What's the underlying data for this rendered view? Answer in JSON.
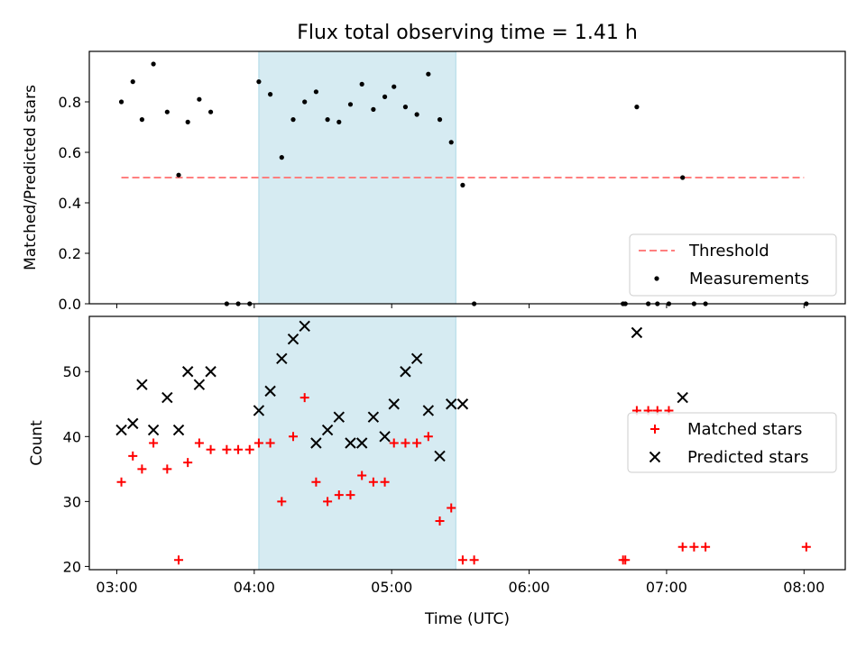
{
  "chart_data": {
    "type": "scatter",
    "title": "Flux total observing time = 1.41 h",
    "xlabel": "Time (UTC)",
    "xlim": [
      "02:48",
      "08:18"
    ],
    "xticks": [
      "03:00",
      "04:00",
      "05:00",
      "06:00",
      "07:00",
      "08:00"
    ],
    "shaded_region": {
      "start": "04:02",
      "end": "05:28",
      "color": "#add8e6"
    },
    "panels": [
      {
        "name": "ratio",
        "ylabel": "Matched/Predicted stars",
        "ylim": [
          0,
          1.0
        ],
        "yticks": [
          "0.0",
          "0.2",
          "0.4",
          "0.6",
          "0.8"
        ],
        "threshold": {
          "label": "Threshold",
          "y": 0.5,
          "x_start": "03:02",
          "x_end": "08:00",
          "color": "#ff7f7f"
        },
        "series": [
          {
            "name": "Measurements",
            "marker": "dot",
            "color": "#000000",
            "points": [
              [
                "03:02",
                0.8
              ],
              [
                "03:07",
                0.88
              ],
              [
                "03:11",
                0.73
              ],
              [
                "03:16",
                0.95
              ],
              [
                "03:22",
                0.76
              ],
              [
                "03:27",
                0.51
              ],
              [
                "03:31",
                0.72
              ],
              [
                "03:36",
                0.81
              ],
              [
                "03:41",
                0.76
              ],
              [
                "03:48",
                0.0
              ],
              [
                "03:53",
                0.0
              ],
              [
                "03:58",
                0.0
              ],
              [
                "04:02",
                0.88
              ],
              [
                "04:07",
                0.83
              ],
              [
                "04:12",
                0.58
              ],
              [
                "04:17",
                0.73
              ],
              [
                "04:22",
                0.8
              ],
              [
                "04:27",
                0.84
              ],
              [
                "04:32",
                0.73
              ],
              [
                "04:37",
                0.72
              ],
              [
                "04:42",
                0.79
              ],
              [
                "04:47",
                0.87
              ],
              [
                "04:52",
                0.77
              ],
              [
                "04:57",
                0.82
              ],
              [
                "05:01",
                0.86
              ],
              [
                "05:06",
                0.78
              ],
              [
                "05:11",
                0.75
              ],
              [
                "05:16",
                0.91
              ],
              [
                "05:21",
                0.73
              ],
              [
                "05:26",
                0.64
              ],
              [
                "05:31",
                0.47
              ],
              [
                "05:36",
                0.0
              ],
              [
                "06:41",
                0.0
              ],
              [
                "06:42",
                0.0
              ],
              [
                "06:47",
                0.78
              ],
              [
                "06:52",
                0.0
              ],
              [
                "06:56",
                0.0
              ],
              [
                "07:01",
                0.0
              ],
              [
                "07:07",
                0.5
              ],
              [
                "07:12",
                0.0
              ],
              [
                "07:17",
                0.0
              ],
              [
                "08:01",
                0.0
              ]
            ]
          }
        ],
        "legend": {
          "placement": "lower-right",
          "entries": [
            "Threshold",
            "Measurements"
          ]
        }
      },
      {
        "name": "count",
        "ylabel": "Count",
        "ylim": [
          19.5,
          58.5
        ],
        "yticks": [
          "20",
          "30",
          "40",
          "50"
        ],
        "series": [
          {
            "name": "Matched stars",
            "marker": "plus",
            "color": "#ff0000",
            "points": [
              [
                "03:02",
                33
              ],
              [
                "03:07",
                37
              ],
              [
                "03:11",
                35
              ],
              [
                "03:16",
                39
              ],
              [
                "03:22",
                35
              ],
              [
                "03:27",
                21
              ],
              [
                "03:31",
                36
              ],
              [
                "03:36",
                39
              ],
              [
                "03:41",
                38
              ],
              [
                "03:48",
                38
              ],
              [
                "03:53",
                38
              ],
              [
                "03:58",
                38
              ],
              [
                "04:02",
                39
              ],
              [
                "04:07",
                39
              ],
              [
                "04:12",
                30
              ],
              [
                "04:17",
                40
              ],
              [
                "04:22",
                46
              ],
              [
                "04:27",
                33
              ],
              [
                "04:32",
                30
              ],
              [
                "04:37",
                31
              ],
              [
                "04:42",
                31
              ],
              [
                "04:47",
                34
              ],
              [
                "04:52",
                33
              ],
              [
                "04:57",
                33
              ],
              [
                "05:01",
                39
              ],
              [
                "05:06",
                39
              ],
              [
                "05:11",
                39
              ],
              [
                "05:16",
                40
              ],
              [
                "05:21",
                27
              ],
              [
                "05:26",
                29
              ],
              [
                "05:31",
                21
              ],
              [
                "05:36",
                21
              ],
              [
                "06:41",
                21
              ],
              [
                "06:42",
                21
              ],
              [
                "06:47",
                44
              ],
              [
                "06:52",
                44
              ],
              [
                "06:56",
                44
              ],
              [
                "07:01",
                44
              ],
              [
                "07:07",
                23
              ],
              [
                "07:12",
                23
              ],
              [
                "07:17",
                23
              ],
              [
                "08:01",
                23
              ]
            ]
          },
          {
            "name": "Predicted stars",
            "marker": "x",
            "color": "#000000",
            "points": [
              [
                "03:02",
                41
              ],
              [
                "03:07",
                42
              ],
              [
                "03:11",
                48
              ],
              [
                "03:16",
                41
              ],
              [
                "03:22",
                46
              ],
              [
                "03:27",
                41
              ],
              [
                "03:31",
                50
              ],
              [
                "03:36",
                48
              ],
              [
                "03:41",
                50
              ],
              [
                "04:02",
                44
              ],
              [
                "04:07",
                47
              ],
              [
                "04:12",
                52
              ],
              [
                "04:17",
                55
              ],
              [
                "04:22",
                57
              ],
              [
                "04:27",
                39
              ],
              [
                "04:32",
                41
              ],
              [
                "04:37",
                43
              ],
              [
                "04:42",
                39
              ],
              [
                "04:47",
                39
              ],
              [
                "04:52",
                43
              ],
              [
                "04:57",
                40
              ],
              [
                "05:01",
                45
              ],
              [
                "05:06",
                50
              ],
              [
                "05:11",
                52
              ],
              [
                "05:16",
                44
              ],
              [
                "05:21",
                37
              ],
              [
                "05:26",
                45
              ],
              [
                "05:31",
                45
              ],
              [
                "06:47",
                56
              ],
              [
                "07:07",
                46
              ]
            ]
          }
        ],
        "legend": {
          "placement": "center-right",
          "entries": [
            "Matched stars",
            "Predicted stars"
          ]
        }
      }
    ]
  }
}
